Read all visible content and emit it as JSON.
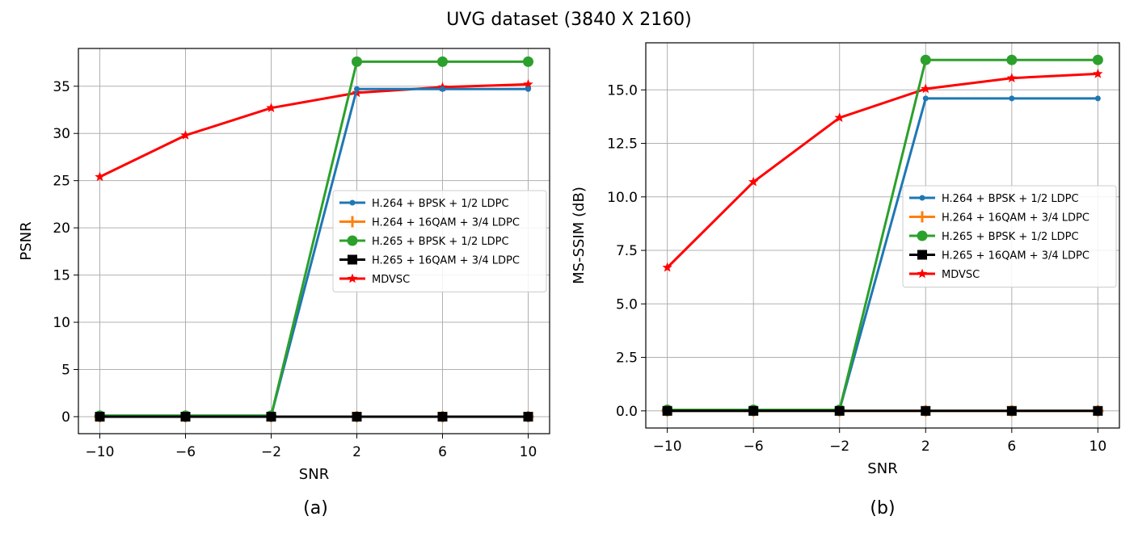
{
  "figure_title": "UVG dataset (3840 X 2160)",
  "colors": {
    "h264_bpsk": "#1f77b4",
    "h264_16qam": "#ff7f0e",
    "h265_bpsk": "#2ca02c",
    "h265_16qam": "#000000",
    "mdvsc": "#ff0000",
    "grid": "#b0b0b0"
  },
  "chart_data": [
    {
      "type": "line",
      "caption": "(a)",
      "xlabel": "SNR",
      "ylabel": "PSNR",
      "x": [
        -10,
        -6,
        -2,
        2,
        6,
        10
      ],
      "x_ticks": [
        "−10",
        "−6",
        "−2",
        "2",
        "6",
        "10"
      ],
      "xlim": [
        -11,
        11
      ],
      "ylim": [
        -1.8,
        39
      ],
      "y_ticks": [
        0,
        5,
        10,
        15,
        20,
        25,
        30,
        35
      ],
      "grid": true,
      "legend_position": "center-right",
      "series": [
        {
          "name": "H.264 + BPSK + 1/2 LDPC",
          "marker": "dot",
          "color_key": "h264_bpsk",
          "values": [
            0.1,
            0.1,
            0.1,
            34.7,
            34.7,
            34.7
          ]
        },
        {
          "name": "H.264 + 16QAM + 3/4 LDPC",
          "marker": "plus",
          "color_key": "h264_16qam",
          "values": [
            0,
            0,
            0,
            0,
            0,
            0
          ]
        },
        {
          "name": "H.265 + BPSK + 1/2 LDPC",
          "marker": "circle",
          "color_key": "h265_bpsk",
          "values": [
            0.1,
            0.1,
            0.1,
            37.6,
            37.6,
            37.6
          ]
        },
        {
          "name": "H.265 + 16QAM + 3/4 LDPC",
          "marker": "square",
          "color_key": "h265_16qam",
          "values": [
            0,
            0,
            0,
            0,
            0,
            0
          ]
        },
        {
          "name": "MDVSC",
          "marker": "star",
          "color_key": "mdvsc",
          "values": [
            25.4,
            29.8,
            32.7,
            34.3,
            34.9,
            35.2
          ]
        }
      ]
    },
    {
      "type": "line",
      "caption": "(b)",
      "xlabel": "SNR",
      "ylabel": "MS-SSIM (dB)",
      "x": [
        -10,
        -6,
        -2,
        2,
        6,
        10
      ],
      "x_ticks": [
        "−10",
        "−6",
        "−2",
        "2",
        "6",
        "10"
      ],
      "xlim": [
        -11,
        11
      ],
      "ylim": [
        -0.8,
        17.2
      ],
      "y_ticks": [
        "0.0",
        "2.5",
        "5.0",
        "7.5",
        "10.0",
        "12.5",
        "15.0"
      ],
      "grid": true,
      "legend_position": "center-right",
      "series": [
        {
          "name": "H.264 + BPSK + 1/2 LDPC",
          "marker": "dot",
          "color_key": "h264_bpsk",
          "values": [
            0.05,
            0.05,
            0.05,
            14.6,
            14.6,
            14.6
          ]
        },
        {
          "name": "H.264 + 16QAM + 3/4 LDPC",
          "marker": "plus",
          "color_key": "h264_16qam",
          "values": [
            0,
            0,
            0,
            0,
            0,
            0
          ]
        },
        {
          "name": "H.265 + BPSK + 1/2 LDPC",
          "marker": "circle",
          "color_key": "h265_bpsk",
          "values": [
            0.05,
            0.05,
            0.05,
            16.4,
            16.4,
            16.4
          ]
        },
        {
          "name": "H.265 + 16QAM + 3/4 LDPC",
          "marker": "square",
          "color_key": "h265_16qam",
          "values": [
            0,
            0,
            0,
            0,
            0,
            0
          ]
        },
        {
          "name": "MDVSC",
          "marker": "star",
          "color_key": "mdvsc",
          "values": [
            6.7,
            10.7,
            13.7,
            15.05,
            15.55,
            15.75
          ]
        }
      ]
    }
  ]
}
